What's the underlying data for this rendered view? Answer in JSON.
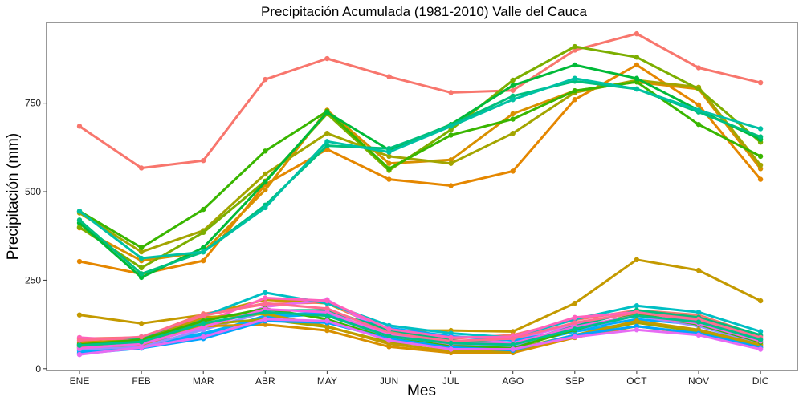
{
  "chart_data": {
    "type": "line",
    "title": "Precipitación Acumulada (1981-2010)  Valle del Cauca",
    "xlabel": "Mes",
    "ylabel": "Precipitación  (mm)",
    "categories": [
      "ENE",
      "FEB",
      "MAR",
      "ABR",
      "MAY",
      "JUN",
      "JUL",
      "AGO",
      "SEP",
      "OCT",
      "NOV",
      "DIC"
    ],
    "ylim": [
      -5,
      978
    ],
    "yticks": [
      0,
      250,
      500,
      750
    ],
    "grid": false,
    "legend": "none",
    "series": [
      {
        "color": "#F8766D",
        "values": [
          685,
          567,
          588,
          817,
          876,
          825,
          780,
          786,
          900,
          946,
          850,
          808
        ]
      },
      {
        "color": "#E58700",
        "values": [
          303,
          268,
          305,
          520,
          620,
          535,
          517,
          558,
          760,
          858,
          745,
          535
        ]
      },
      {
        "color": "#D89000",
        "values": [
          398,
          305,
          330,
          505,
          730,
          580,
          590,
          720,
          785,
          810,
          790,
          565
        ]
      },
      {
        "color": "#A3A500",
        "values": [
          440,
          330,
          390,
          550,
          665,
          600,
          580,
          665,
          780,
          815,
          795,
          575
        ]
      },
      {
        "color": "#7CAE00",
        "values": [
          400,
          285,
          385,
          530,
          720,
          560,
          675,
          815,
          910,
          880,
          790,
          640
        ]
      },
      {
        "color": "#39B600",
        "values": [
          445,
          342,
          450,
          615,
          727,
          565,
          660,
          705,
          785,
          810,
          690,
          600
        ]
      },
      {
        "color": "#00BA38",
        "values": [
          412,
          258,
          342,
          527,
          724,
          618,
          690,
          800,
          858,
          820,
          730,
          648
        ]
      },
      {
        "color": "#00BF7D",
        "values": [
          420,
          268,
          330,
          462,
          630,
          622,
          688,
          770,
          812,
          790,
          725,
          655
        ]
      },
      {
        "color": "#00C1A3",
        "values": [
          445,
          312,
          330,
          455,
          642,
          612,
          685,
          760,
          820,
          790,
          730,
          678
        ]
      },
      {
        "color": "#C49A00",
        "values": [
          152,
          128,
          152,
          195,
          185,
          108,
          108,
          105,
          185,
          308,
          278,
          192
        ]
      },
      {
        "color": "#F8766D",
        "values": [
          85,
          88,
          155,
          182,
          188,
          105,
          85,
          95,
          138,
          165,
          152,
          92
        ]
      },
      {
        "color": "#E76BF3",
        "values": [
          72,
          75,
          115,
          175,
          195,
          98,
          70,
          82,
          125,
          160,
          140,
          85
        ]
      },
      {
        "color": "#00BFC4",
        "values": [
          62,
          90,
          148,
          215,
          185,
          122,
          100,
          88,
          140,
          178,
          160,
          105
        ]
      },
      {
        "color": "#00A9FF",
        "values": [
          45,
          65,
          95,
          150,
          160,
          115,
          92,
          80,
          110,
          140,
          125,
          75
        ]
      },
      {
        "color": "#00BF7D",
        "values": [
          70,
          85,
          140,
          165,
          165,
          110,
          80,
          70,
          120,
          165,
          145,
          95
        ]
      },
      {
        "color": "#00B0F6",
        "values": [
          50,
          70,
          100,
          145,
          155,
          100,
          75,
          65,
          105,
          130,
          110,
          70
        ]
      },
      {
        "color": "#FF62BC",
        "values": [
          88,
          78,
          130,
          200,
          192,
          112,
          88,
          90,
          145,
          160,
          135,
          82
        ]
      },
      {
        "color": "#9590FF",
        "values": [
          55,
          62,
          110,
          160,
          150,
          90,
          65,
          62,
          110,
          150,
          120,
          72
        ]
      },
      {
        "color": "#A3A500",
        "values": [
          65,
          72,
          125,
          140,
          118,
          75,
          60,
          55,
          95,
          130,
          105,
          65
        ]
      },
      {
        "color": "#D89000",
        "values": [
          60,
          68,
          120,
          125,
          108,
          62,
          45,
          45,
          88,
          120,
          98,
          60
        ]
      },
      {
        "color": "#C49A00",
        "values": [
          75,
          80,
          145,
          155,
          120,
          70,
          50,
          48,
          95,
          135,
          110,
          68
        ]
      },
      {
        "color": "#39B600",
        "values": [
          68,
          82,
          135,
          170,
          140,
          85,
          65,
          58,
          110,
          155,
          125,
          75
        ]
      },
      {
        "color": "#00A5FF",
        "values": [
          42,
          58,
          85,
          135,
          130,
          85,
          60,
          52,
          95,
          120,
          100,
          60
        ]
      },
      {
        "color": "#FF6C91",
        "values": [
          80,
          90,
          150,
          185,
          170,
          100,
          78,
          85,
          130,
          158,
          140,
          88
        ]
      },
      {
        "color": "#F564E3",
        "values": [
          58,
          70,
          118,
          168,
          160,
          95,
          70,
          72,
          118,
          150,
          128,
          78
        ]
      },
      {
        "color": "#00C08B",
        "values": [
          66,
          76,
          128,
          160,
          150,
          92,
          72,
          68,
          112,
          150,
          132,
          82
        ]
      },
      {
        "color": "#E76BF3",
        "values": [
          40,
          60,
          90,
          140,
          135,
          80,
          55,
          55,
          90,
          110,
          95,
          55
        ]
      }
    ]
  }
}
